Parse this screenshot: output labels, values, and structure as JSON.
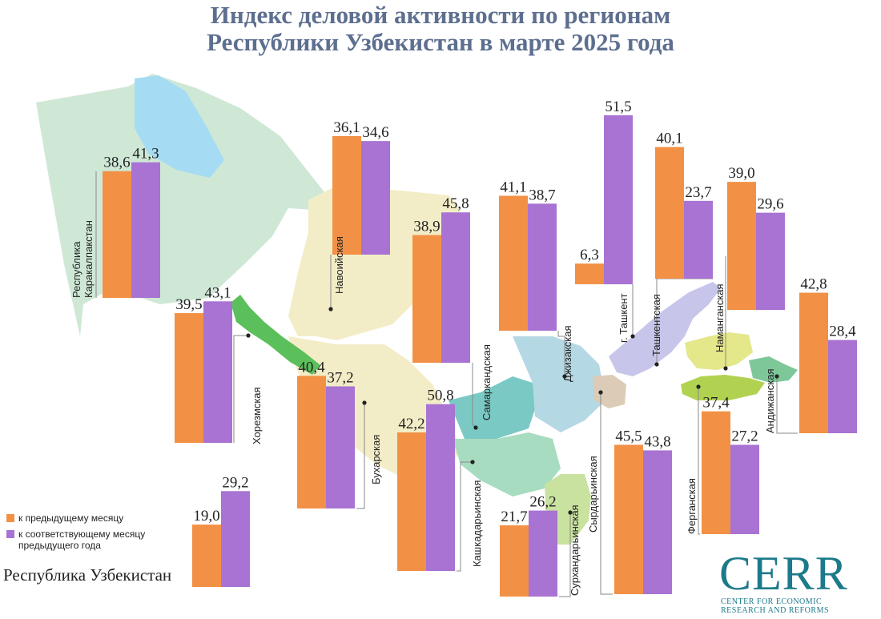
{
  "title": {
    "line1": "Индекс деловой активности по регионам",
    "line2": "Республики Узбекистан в марте 2025 года"
  },
  "colors": {
    "prev_month": "#f29146",
    "prev_year": "#a873d2",
    "title": "#5d6f8f",
    "logo": "#1d7a8a"
  },
  "legend": {
    "prev_month": "к предыдущему месяцу",
    "prev_year_line1": "к соответствующему месяцу",
    "prev_year_line2": "предыдущего года"
  },
  "country_label": "Республика Узбекистан",
  "logo": {
    "word": "CERR",
    "sub1": "CENTER FOR ECONOMIC",
    "sub2": "RESEARCH AND REFORMS"
  },
  "chart_data": {
    "type": "bar",
    "series": [
      {
        "name": "к предыдущему месяцу",
        "values": [
          38.6,
          36.1,
          39.5,
          38.9,
          41.1,
          6.3,
          40.1,
          39.0,
          40.4,
          42.2,
          42.8,
          37.4,
          45.5,
          21.7,
          19.0
        ]
      },
      {
        "name": "к соответствующему месяцу предыдущего года",
        "values": [
          41.3,
          34.6,
          43.1,
          45.8,
          38.7,
          51.5,
          23.7,
          29.6,
          37.2,
          50.8,
          28.4,
          27.2,
          43.8,
          26.2,
          29.2
        ]
      }
    ],
    "categories": [
      "Республика Каракалпакстан",
      "Навоийская",
      "Хорезмская",
      "Самаркандская",
      "Джизакская",
      "г. Ташкент",
      "Ташкентская",
      "Наманганская",
      "Бухарская",
      "Кашкадарьинская",
      "Андижанская",
      "Ферганская",
      "Сырдарьинская",
      "Сурхандарьинская",
      "Республика Узбекистан"
    ],
    "value_labels": [
      [
        "38,6",
        "41,3"
      ],
      [
        "36,1",
        "34,6"
      ],
      [
        "39,5",
        "43,1"
      ],
      [
        "38,9",
        "45,8"
      ],
      [
        "41,1",
        "38,7"
      ],
      [
        "6,3",
        "51,5"
      ],
      [
        "40,1",
        "23,7"
      ],
      [
        "39,0",
        "29,6"
      ],
      [
        "40,4",
        "37,2"
      ],
      [
        "42,2",
        "50,8"
      ],
      [
        "42,8",
        "28,4"
      ],
      [
        "37,4",
        "27,2"
      ],
      [
        "45,5",
        "43,8"
      ],
      [
        "21,7",
        "26,2"
      ],
      [
        "19,0",
        "29,2"
      ]
    ]
  }
}
